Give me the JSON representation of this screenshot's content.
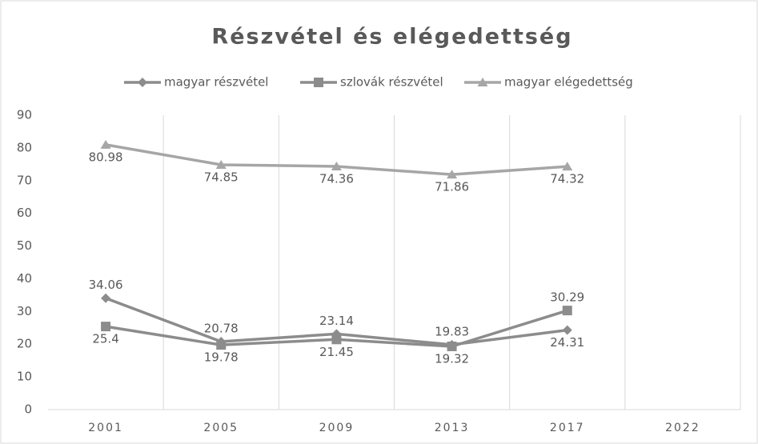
{
  "chart_data": {
    "type": "line",
    "title": "Részvétel és elégedettség",
    "categories": [
      "2001",
      "2005",
      "2009",
      "2013",
      "2017",
      "2022"
    ],
    "series": [
      {
        "name": "magyar részvétel",
        "color": "#8c8c8c",
        "marker": "diamond",
        "values": [
          34.06,
          20.78,
          23.14,
          19.83,
          24.31,
          null
        ]
      },
      {
        "name": "szlovák részvétel",
        "color": "#8c8c8c",
        "marker": "square",
        "values": [
          25.4,
          19.78,
          21.45,
          19.32,
          30.29,
          null
        ]
      },
      {
        "name": "magyar elégedettség",
        "color": "#a6a6a6",
        "marker": "triangle",
        "values": [
          80.98,
          74.85,
          74.36,
          71.86,
          74.32,
          null
        ]
      }
    ],
    "ylim": [
      0,
      90
    ],
    "yticks": [
      0,
      10,
      20,
      30,
      40,
      50,
      60,
      70,
      80,
      90
    ],
    "grid": "x",
    "legend": "top"
  }
}
